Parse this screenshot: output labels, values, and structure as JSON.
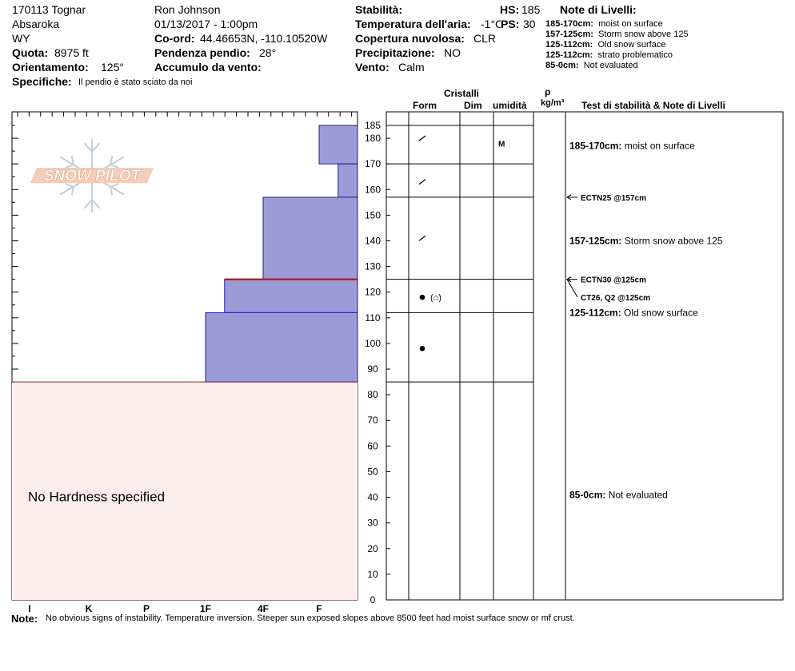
{
  "header": {
    "site": "170113 Tognar",
    "range": "Absaroka",
    "state": "WY",
    "elevation_label": "Quota:",
    "elevation_value": "8975 ft",
    "aspect_label": "Orientamento:",
    "aspect_value": "125°",
    "specifics_label": "Specifiche:",
    "specifics_value": "Il pendio è stato sciato da noi",
    "observer": "Ron  Johnson",
    "datetime": "01/13/2017 - 1:00pm",
    "coord_label": "Co-ord:",
    "coord_value": "44.46653N, -110.10520W",
    "slope_label": "Pendenza pendio:",
    "slope_value": "28°",
    "wind_loading_label": "Accumulo da vento:",
    "wind_loading_value": "",
    "stability_label": "Stabilità:",
    "stability_value": "",
    "airtemp_label": "Temperatura dell'aria:",
    "airtemp_value": "-1°C",
    "cloud_label": "Copertura nuvolosa:",
    "cloud_value": "CLR",
    "precip_label": "Precipitazione:",
    "precip_value": "NO",
    "wind_label": "Vento:",
    "wind_value": "Calm",
    "hs_label": "HS:",
    "hs_value": "185",
    "ps_label": "PS:",
    "ps_value": "30",
    "layer_notes_title": "Note di Livelli:",
    "layer_notes": [
      {
        "range": "185-170cm:",
        "text": "moist on surface"
      },
      {
        "range": "157-125cm:",
        "text": "Storm snow above 125"
      },
      {
        "range": "125-112cm:",
        "text": "Old snow surface"
      },
      {
        "range": "125-112cm:",
        "text": "strato problematico"
      },
      {
        "range": "85-0cm:",
        "text": "Not evaluated"
      }
    ]
  },
  "logo_text": "SNOW PILOT",
  "columns": {
    "crystals": "Cristalli",
    "form": "Form",
    "dim": "Dim",
    "humidity": "umidità",
    "rho": "ρ",
    "density": "kg/m³",
    "tests": "Test di stabilità & Note di Livelli"
  },
  "chart_data": {
    "type": "bar",
    "title": "",
    "xlabel": "",
    "ylabel": "",
    "x_categories": [
      "I",
      "K",
      "P",
      "1F",
      "4F",
      "F"
    ],
    "y_ticks": [
      0,
      10,
      20,
      30,
      40,
      50,
      60,
      70,
      80,
      90,
      100,
      110,
      120,
      130,
      140,
      150,
      160,
      170,
      180,
      185
    ],
    "ylim": [
      0,
      185
    ],
    "hardness_layers": [
      {
        "top": 185,
        "bottom": 170,
        "hardness": "F"
      },
      {
        "top": 170,
        "bottom": 157,
        "hardness": "F+"
      },
      {
        "top": 157,
        "bottom": 125,
        "hardness": "4F"
      },
      {
        "top": 125,
        "bottom": 112,
        "hardness": "1F+"
      },
      {
        "top": 112,
        "bottom": 85,
        "hardness": "1F"
      }
    ],
    "layer_boundaries": [
      185,
      170,
      157,
      125,
      112,
      85
    ],
    "problem_layer_at": 125,
    "no_hardness_range": [
      0,
      85
    ],
    "no_hardness_label": "No Hardness specified",
    "grain_forms": [
      {
        "depth": 180,
        "symbol": "/"
      },
      {
        "depth": 163,
        "symbol": "/"
      },
      {
        "depth": 141,
        "symbol": "/"
      },
      {
        "depth": 118,
        "symbol": "●",
        "secondary": "(⌂)"
      },
      {
        "depth": 98,
        "symbol": "●"
      }
    ],
    "humidity": [
      {
        "depth": 178,
        "code": "M"
      }
    ],
    "layer_notes": [
      {
        "depth": 177,
        "range": "185-170cm:",
        "text": "moist on surface"
      },
      {
        "depth": 140,
        "range": "157-125cm:",
        "text": "Storm snow above 125"
      },
      {
        "depth": 112,
        "range": "125-112cm:",
        "text": "Old snow surface"
      },
      {
        "depth": 41,
        "range": "85-0cm:",
        "text": "Not evaluated"
      }
    ],
    "stability_tests": [
      {
        "depth": 157,
        "label": "ECTN25 @157cm",
        "label_depth": 157
      },
      {
        "depth": 125,
        "label": "ECTN30 @125cm",
        "label_depth": 125
      },
      {
        "depth": 125,
        "label": "CT26, Q2 @125cm",
        "label_depth": 118
      }
    ]
  },
  "footer": {
    "note_label": "Note:",
    "note_text": "No obvious signs of instability.  Temperature inversion.  Steeper sun exposed slopes above 8500 feet had moist surface snow or mf crust."
  }
}
